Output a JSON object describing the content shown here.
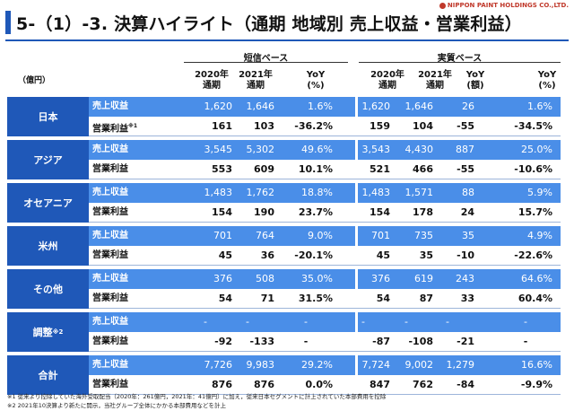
{
  "header": {
    "title": "5-（1）-3. 決算ハイライト（通期 地域別 売上収益・営業利益）",
    "logo_text": "NIPPON PAINT HOLDINGS CO.,LTD."
  },
  "table": {
    "unit": "（億円）",
    "group_reported": "短信ベース",
    "group_actual": "実質ベース",
    "columns": [
      "2020年通期",
      "2021年通期",
      "YoY (%)",
      "2020年通期",
      "2021年通期",
      "YoY (額)",
      "YoY (%)"
    ],
    "col_lines": [
      [
        "2020年",
        "通期"
      ],
      [
        "2021年",
        "通期"
      ],
      [
        "YoY",
        "(%)"
      ],
      [
        "2020年",
        "通期"
      ],
      [
        "2021年",
        "通期"
      ],
      [
        "YoY",
        "(額)"
      ],
      [
        "YoY",
        "(%)"
      ]
    ],
    "label_revenue": "売上収益",
    "label_profit": "営業利益",
    "regions": [
      {
        "name": "日本",
        "mark": "",
        "revenue_mark": "",
        "profit_mark": "※1",
        "revenue": [
          "1,620",
          "1,646",
          "1.6%",
          "1,620",
          "1,646",
          "26",
          "1.6%"
        ],
        "profit": [
          "161",
          "103",
          "-36.2%",
          "159",
          "104",
          "-55",
          "-34.5%"
        ]
      },
      {
        "name": "アジア",
        "mark": "",
        "revenue_mark": "",
        "profit_mark": "",
        "revenue": [
          "3,545",
          "5,302",
          "49.6%",
          "3,543",
          "4,430",
          "887",
          "25.0%"
        ],
        "profit": [
          "553",
          "609",
          "10.1%",
          "521",
          "466",
          "-55",
          "-10.6%"
        ]
      },
      {
        "name": "オセアニア",
        "mark": "",
        "revenue_mark": "",
        "profit_mark": "",
        "revenue": [
          "1,483",
          "1,762",
          "18.8%",
          "1,483",
          "1,571",
          "88",
          "5.9%"
        ],
        "profit": [
          "154",
          "190",
          "23.7%",
          "154",
          "178",
          "24",
          "15.7%"
        ]
      },
      {
        "name": "米州",
        "mark": "",
        "revenue_mark": "",
        "profit_mark": "",
        "revenue": [
          "701",
          "764",
          "9.0%",
          "701",
          "735",
          "35",
          "4.9%"
        ],
        "profit": [
          "45",
          "36",
          "-20.1%",
          "45",
          "35",
          "-10",
          "-22.6%"
        ]
      },
      {
        "name": "その他",
        "mark": "",
        "revenue_mark": "",
        "profit_mark": "",
        "revenue": [
          "376",
          "508",
          "35.0%",
          "376",
          "619",
          "243",
          "64.6%"
        ],
        "profit": [
          "54",
          "71",
          "31.5%",
          "54",
          "87",
          "33",
          "60.4%"
        ]
      },
      {
        "name": "調整",
        "mark": "※2",
        "revenue_mark": "",
        "profit_mark": "",
        "revenue": [
          "-",
          "-",
          "-",
          "-",
          "-",
          "-",
          "-"
        ],
        "profit": [
          "-92",
          "-133",
          "-",
          "-87",
          "-108",
          "-21",
          "-"
        ]
      },
      {
        "name": "合計",
        "mark": "",
        "revenue_mark": "",
        "profit_mark": "",
        "revenue": [
          "7,726",
          "9,983",
          "29.2%",
          "7,724",
          "9,002",
          "1,279",
          "16.6%"
        ],
        "profit": [
          "876",
          "876",
          "0.0%",
          "847",
          "762",
          "-84",
          "-9.9%"
        ]
      }
    ]
  },
  "footnotes": [
    "※1 従来より控除していた海外受取配当（2020年：261億円，2021年：41億円）に加え，従来日本セグメントに計上されていた本部費用を控除",
    "※2 2021年10決算より新たに開示，当社グループ全体にかかる本部費用などを計上"
  ],
  "colors": {
    "accent": "#1f58b8",
    "row_blue": "#4a8ee8",
    "separator": "#9db5da"
  }
}
